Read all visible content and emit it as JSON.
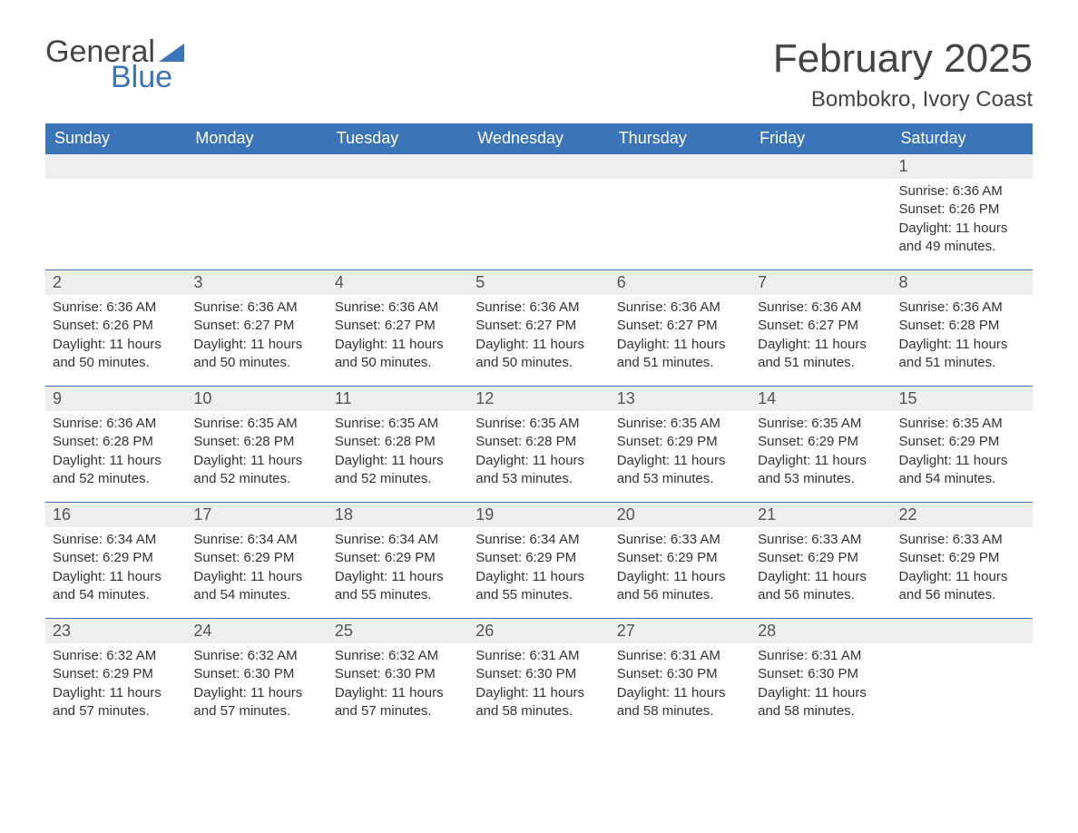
{
  "logo": {
    "text1": "General",
    "text2": "Blue"
  },
  "title": "February 2025",
  "location": "Bombokro, Ivory Coast",
  "colors": {
    "header_bg": "#3b74b9",
    "header_text": "#ffffff",
    "daynum_bg": "#eeeeee",
    "row_border": "#3b74b9",
    "text": "#333333",
    "logo_blue": "#3b74b9"
  },
  "weekdays": [
    "Sunday",
    "Monday",
    "Tuesday",
    "Wednesday",
    "Thursday",
    "Friday",
    "Saturday"
  ],
  "weeks": [
    [
      null,
      null,
      null,
      null,
      null,
      null,
      {
        "day": "1",
        "sunrise": "Sunrise: 6:36 AM",
        "sunset": "Sunset: 6:26 PM",
        "daylight": "Daylight: 11 hours and 49 minutes."
      }
    ],
    [
      {
        "day": "2",
        "sunrise": "Sunrise: 6:36 AM",
        "sunset": "Sunset: 6:26 PM",
        "daylight": "Daylight: 11 hours and 50 minutes."
      },
      {
        "day": "3",
        "sunrise": "Sunrise: 6:36 AM",
        "sunset": "Sunset: 6:27 PM",
        "daylight": "Daylight: 11 hours and 50 minutes."
      },
      {
        "day": "4",
        "sunrise": "Sunrise: 6:36 AM",
        "sunset": "Sunset: 6:27 PM",
        "daylight": "Daylight: 11 hours and 50 minutes."
      },
      {
        "day": "5",
        "sunrise": "Sunrise: 6:36 AM",
        "sunset": "Sunset: 6:27 PM",
        "daylight": "Daylight: 11 hours and 50 minutes."
      },
      {
        "day": "6",
        "sunrise": "Sunrise: 6:36 AM",
        "sunset": "Sunset: 6:27 PM",
        "daylight": "Daylight: 11 hours and 51 minutes."
      },
      {
        "day": "7",
        "sunrise": "Sunrise: 6:36 AM",
        "sunset": "Sunset: 6:27 PM",
        "daylight": "Daylight: 11 hours and 51 minutes."
      },
      {
        "day": "8",
        "sunrise": "Sunrise: 6:36 AM",
        "sunset": "Sunset: 6:28 PM",
        "daylight": "Daylight: 11 hours and 51 minutes."
      }
    ],
    [
      {
        "day": "9",
        "sunrise": "Sunrise: 6:36 AM",
        "sunset": "Sunset: 6:28 PM",
        "daylight": "Daylight: 11 hours and 52 minutes."
      },
      {
        "day": "10",
        "sunrise": "Sunrise: 6:35 AM",
        "sunset": "Sunset: 6:28 PM",
        "daylight": "Daylight: 11 hours and 52 minutes."
      },
      {
        "day": "11",
        "sunrise": "Sunrise: 6:35 AM",
        "sunset": "Sunset: 6:28 PM",
        "daylight": "Daylight: 11 hours and 52 minutes."
      },
      {
        "day": "12",
        "sunrise": "Sunrise: 6:35 AM",
        "sunset": "Sunset: 6:28 PM",
        "daylight": "Daylight: 11 hours and 53 minutes."
      },
      {
        "day": "13",
        "sunrise": "Sunrise: 6:35 AM",
        "sunset": "Sunset: 6:29 PM",
        "daylight": "Daylight: 11 hours and 53 minutes."
      },
      {
        "day": "14",
        "sunrise": "Sunrise: 6:35 AM",
        "sunset": "Sunset: 6:29 PM",
        "daylight": "Daylight: 11 hours and 53 minutes."
      },
      {
        "day": "15",
        "sunrise": "Sunrise: 6:35 AM",
        "sunset": "Sunset: 6:29 PM",
        "daylight": "Daylight: 11 hours and 54 minutes."
      }
    ],
    [
      {
        "day": "16",
        "sunrise": "Sunrise: 6:34 AM",
        "sunset": "Sunset: 6:29 PM",
        "daylight": "Daylight: 11 hours and 54 minutes."
      },
      {
        "day": "17",
        "sunrise": "Sunrise: 6:34 AM",
        "sunset": "Sunset: 6:29 PM",
        "daylight": "Daylight: 11 hours and 54 minutes."
      },
      {
        "day": "18",
        "sunrise": "Sunrise: 6:34 AM",
        "sunset": "Sunset: 6:29 PM",
        "daylight": "Daylight: 11 hours and 55 minutes."
      },
      {
        "day": "19",
        "sunrise": "Sunrise: 6:34 AM",
        "sunset": "Sunset: 6:29 PM",
        "daylight": "Daylight: 11 hours and 55 minutes."
      },
      {
        "day": "20",
        "sunrise": "Sunrise: 6:33 AM",
        "sunset": "Sunset: 6:29 PM",
        "daylight": "Daylight: 11 hours and 56 minutes."
      },
      {
        "day": "21",
        "sunrise": "Sunrise: 6:33 AM",
        "sunset": "Sunset: 6:29 PM",
        "daylight": "Daylight: 11 hours and 56 minutes."
      },
      {
        "day": "22",
        "sunrise": "Sunrise: 6:33 AM",
        "sunset": "Sunset: 6:29 PM",
        "daylight": "Daylight: 11 hours and 56 minutes."
      }
    ],
    [
      {
        "day": "23",
        "sunrise": "Sunrise: 6:32 AM",
        "sunset": "Sunset: 6:29 PM",
        "daylight": "Daylight: 11 hours and 57 minutes."
      },
      {
        "day": "24",
        "sunrise": "Sunrise: 6:32 AM",
        "sunset": "Sunset: 6:30 PM",
        "daylight": "Daylight: 11 hours and 57 minutes."
      },
      {
        "day": "25",
        "sunrise": "Sunrise: 6:32 AM",
        "sunset": "Sunset: 6:30 PM",
        "daylight": "Daylight: 11 hours and 57 minutes."
      },
      {
        "day": "26",
        "sunrise": "Sunrise: 6:31 AM",
        "sunset": "Sunset: 6:30 PM",
        "daylight": "Daylight: 11 hours and 58 minutes."
      },
      {
        "day": "27",
        "sunrise": "Sunrise: 6:31 AM",
        "sunset": "Sunset: 6:30 PM",
        "daylight": "Daylight: 11 hours and 58 minutes."
      },
      {
        "day": "28",
        "sunrise": "Sunrise: 6:31 AM",
        "sunset": "Sunset: 6:30 PM",
        "daylight": "Daylight: 11 hours and 58 minutes."
      },
      null
    ]
  ]
}
